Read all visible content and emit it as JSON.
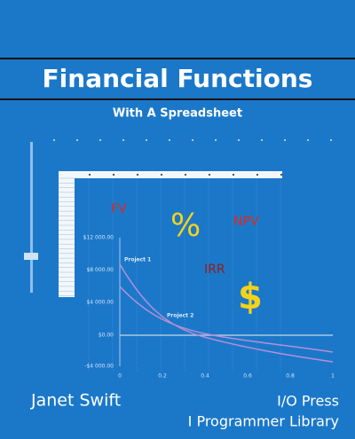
{
  "header": {
    "title": "Financial Functions",
    "subtitle": "With A Spreadsheet"
  },
  "labels": {
    "fv": "FV",
    "percent": "%",
    "npv": "NPV",
    "irr": "IRR",
    "dollar": "$"
  },
  "chart": {
    "y_labels": [
      "$12 000.00",
      "$8 000.00",
      "$4 000.00",
      "$0.00",
      "-$4 000.00"
    ],
    "x_labels": [
      "0",
      "0.2",
      "0.4",
      "0.6",
      "0.8",
      "1"
    ],
    "series": [
      "Project 1",
      "Project 2"
    ]
  },
  "author": "Janet Swift",
  "publisher": "I/O Press",
  "library": "I Programmer Library"
}
